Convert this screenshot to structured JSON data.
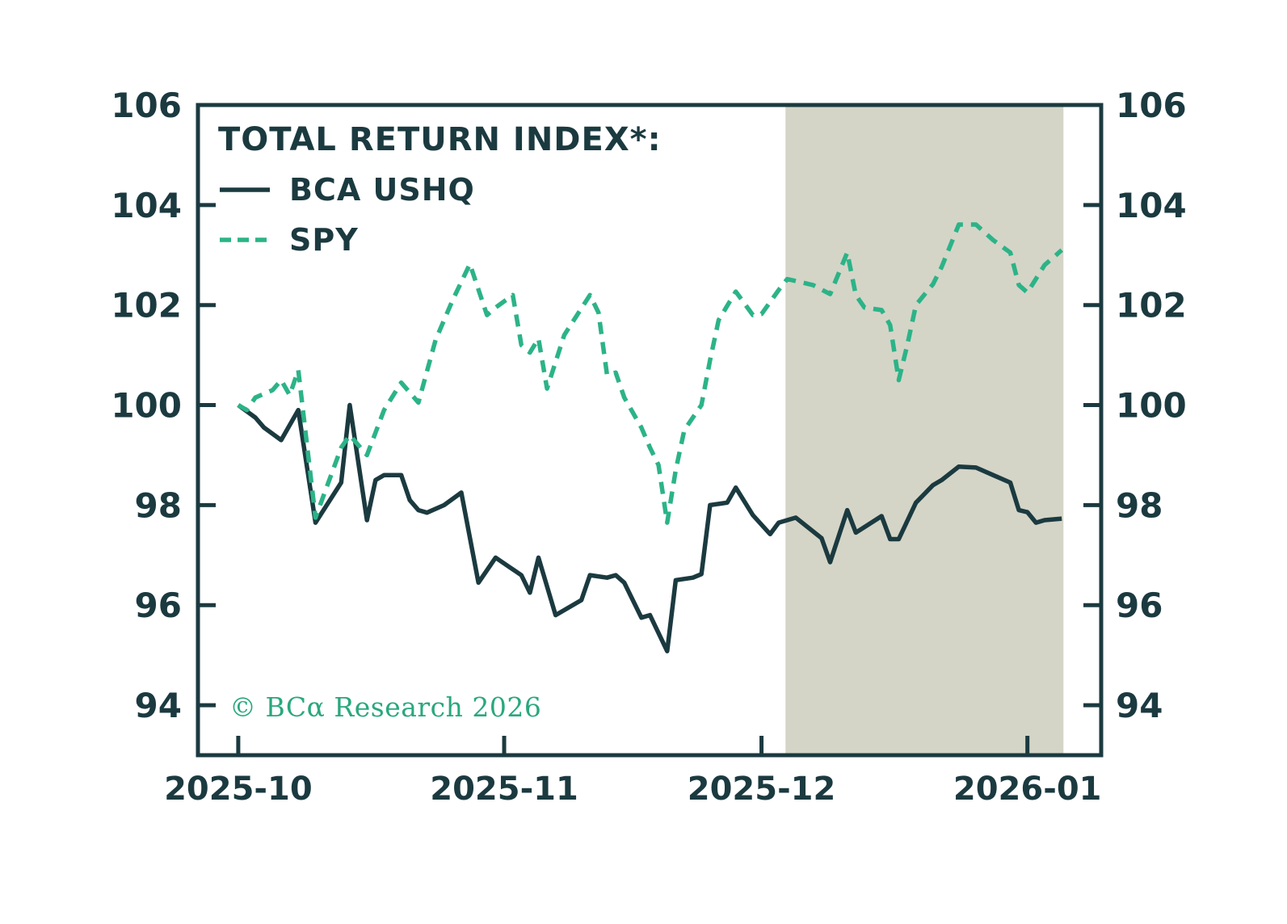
{
  "title": "TOTAL RETURN INDEX*:",
  "legend": {
    "items": [
      {
        "label": "BCA USHQ",
        "style": "solid"
      },
      {
        "label": "SPY",
        "style": "dashed"
      }
    ]
  },
  "copyright": "© BCα Research 2026",
  "colors": {
    "line_dark": "#1b3a40",
    "line_green": "#2cb388",
    "shade": "#d4d5c7",
    "text": "#1b3a40",
    "copyright_green": "#2aa87d",
    "background": "#ffffff"
  },
  "chart_data": {
    "type": "line",
    "title": "TOTAL RETURN INDEX*:",
    "xlabel": "",
    "ylabel": "",
    "x_unit": "days since 2025-10-01 (both series indexed to 100)",
    "x_ticks": [
      {
        "label": "2025-10",
        "day": 0
      },
      {
        "label": "2025-11",
        "day": 31
      },
      {
        "label": "2025-12",
        "day": 61
      },
      {
        "label": "2026-01",
        "day": 92
      }
    ],
    "x_domain_days": [
      -4.7,
      100.6
    ],
    "y_ticks": [
      94,
      96,
      98,
      100,
      102,
      104,
      106
    ],
    "y_range": [
      93,
      106
    ],
    "y_axis_sides": "both",
    "grid": false,
    "legend_position": "top-left inside plot",
    "shaded_region": {
      "start_day": 63.8,
      "end_day": 96.2,
      "approx_dates": [
        "2025-12-04",
        "2026-01-05"
      ]
    },
    "series": [
      {
        "name": "BCA USHQ",
        "line": "solid",
        "points": [
          [
            0,
            100.0
          ],
          [
            2,
            99.75
          ],
          [
            3,
            99.55
          ],
          [
            5,
            99.3
          ],
          [
            7,
            99.9
          ],
          [
            9,
            97.65
          ],
          [
            12,
            98.45
          ],
          [
            13,
            100.0
          ],
          [
            15,
            97.7
          ],
          [
            16,
            98.5
          ],
          [
            17,
            98.6
          ],
          [
            19,
            98.6
          ],
          [
            20,
            98.1
          ],
          [
            21,
            97.9
          ],
          [
            22,
            97.85
          ],
          [
            24,
            98.0
          ],
          [
            26,
            98.25
          ],
          [
            28,
            96.45
          ],
          [
            30,
            96.95
          ],
          [
            33,
            96.6
          ],
          [
            34,
            96.25
          ],
          [
            35,
            96.95
          ],
          [
            37,
            95.8
          ],
          [
            40,
            96.1
          ],
          [
            41,
            96.6
          ],
          [
            43,
            96.55
          ],
          [
            44,
            96.6
          ],
          [
            45,
            96.45
          ],
          [
            47,
            95.75
          ],
          [
            48,
            95.8
          ],
          [
            50,
            95.08
          ],
          [
            51,
            96.5
          ],
          [
            53,
            96.55
          ],
          [
            54,
            96.62
          ],
          [
            55,
            98.0
          ],
          [
            57,
            98.05
          ],
          [
            58,
            98.35
          ],
          [
            60,
            97.8
          ],
          [
            62,
            97.42
          ],
          [
            63,
            97.65
          ],
          [
            65,
            97.75
          ],
          [
            68,
            97.34
          ],
          [
            69,
            96.86
          ],
          [
            71,
            97.9
          ],
          [
            72,
            97.45
          ],
          [
            75,
            97.78
          ],
          [
            76,
            97.32
          ],
          [
            77,
            97.32
          ],
          [
            79,
            98.05
          ],
          [
            81,
            98.4
          ],
          [
            82,
            98.5
          ],
          [
            84,
            98.77
          ],
          [
            86,
            98.75
          ],
          [
            88,
            98.6
          ],
          [
            90,
            98.45
          ],
          [
            91,
            97.9
          ],
          [
            92,
            97.86
          ],
          [
            93,
            97.65
          ],
          [
            94,
            97.7
          ],
          [
            96,
            97.73
          ]
        ]
      },
      {
        "name": "SPY",
        "line": "dashed",
        "points": [
          [
            0,
            100.0
          ],
          [
            1,
            99.9
          ],
          [
            2,
            100.15
          ],
          [
            4,
            100.3
          ],
          [
            5,
            100.5
          ],
          [
            6,
            100.2
          ],
          [
            7,
            100.7
          ],
          [
            9,
            97.75
          ],
          [
            12,
            99.15
          ],
          [
            13,
            99.4
          ],
          [
            15,
            99.0
          ],
          [
            17,
            99.9
          ],
          [
            19,
            100.45
          ],
          [
            21,
            100.05
          ],
          [
            23,
            101.3
          ],
          [
            25,
            102.1
          ],
          [
            27,
            102.82
          ],
          [
            29,
            101.8
          ],
          [
            30,
            101.95
          ],
          [
            32,
            102.2
          ],
          [
            33,
            101.2
          ],
          [
            34,
            101.05
          ],
          [
            35,
            101.33
          ],
          [
            36,
            100.33
          ],
          [
            38,
            101.4
          ],
          [
            41,
            102.2
          ],
          [
            42,
            101.85
          ],
          [
            43,
            100.6
          ],
          [
            44,
            100.65
          ],
          [
            45,
            100.15
          ],
          [
            47,
            99.55
          ],
          [
            48,
            99.15
          ],
          [
            49,
            98.8
          ],
          [
            50,
            97.65
          ],
          [
            51,
            98.7
          ],
          [
            52,
            99.5
          ],
          [
            54,
            100.0
          ],
          [
            55,
            100.9
          ],
          [
            56,
            101.7
          ],
          [
            58,
            102.27
          ],
          [
            60,
            101.8
          ],
          [
            61,
            101.82
          ],
          [
            63,
            102.3
          ],
          [
            64,
            102.52
          ],
          [
            67,
            102.4
          ],
          [
            69,
            102.22
          ],
          [
            71,
            103.05
          ],
          [
            72,
            102.2
          ],
          [
            73,
            101.95
          ],
          [
            75,
            101.9
          ],
          [
            76,
            101.6
          ],
          [
            77,
            100.5
          ],
          [
            78,
            101.2
          ],
          [
            79,
            102.0
          ],
          [
            81,
            102.42
          ],
          [
            82,
            102.76
          ],
          [
            84,
            103.61
          ],
          [
            86,
            103.61
          ],
          [
            88,
            103.3
          ],
          [
            90,
            103.05
          ],
          [
            91,
            102.4
          ],
          [
            92,
            102.25
          ],
          [
            94,
            102.8
          ],
          [
            96,
            103.1
          ]
        ]
      }
    ]
  }
}
